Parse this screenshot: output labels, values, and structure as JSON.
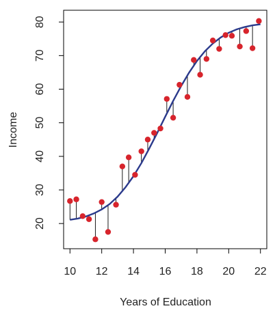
{
  "chart_data": {
    "type": "scatter",
    "title": "",
    "xlabel": "Years of Education",
    "ylabel": "Income",
    "xlim": [
      9.6,
      22.4
    ],
    "ylim": [
      12.5,
      83.5
    ],
    "xticks": [
      10,
      12,
      14,
      16,
      18,
      20,
      22
    ],
    "yticks": [
      20,
      30,
      40,
      50,
      60,
      70,
      80
    ],
    "grid": false,
    "legend": "none",
    "colors": {
      "points": "#d7242c",
      "curve": "#2b3a8c",
      "residuals": "#000000",
      "axis": "#000000"
    },
    "points": {
      "x": [
        10.0,
        10.4,
        10.8,
        11.2,
        11.6,
        12.0,
        12.4,
        12.9,
        13.3,
        13.7,
        14.1,
        14.5,
        14.9,
        15.3,
        15.7,
        16.1,
        16.5,
        16.9,
        17.4,
        17.8,
        18.2,
        18.6,
        19.0,
        19.4,
        19.8,
        20.2,
        20.7,
        21.1,
        21.5,
        21.9
      ],
      "y": [
        26.7,
        27.2,
        22.2,
        21.3,
        15.3,
        26.4,
        17.5,
        25.6,
        37.0,
        39.7,
        34.5,
        41.5,
        45.0,
        47.0,
        48.3,
        57.1,
        51.5,
        61.3,
        57.7,
        68.7,
        64.3,
        69.0,
        74.5,
        72.0,
        76.1,
        75.9,
        72.7,
        77.3,
        72.2,
        80.3
      ]
    },
    "fit_curve": {
      "x": [
        10,
        10.5,
        11,
        11.5,
        12,
        12.5,
        13,
        13.5,
        14,
        14.5,
        15,
        15.5,
        16,
        16.5,
        17,
        17.5,
        18,
        18.5,
        19,
        19.5,
        20,
        20.5,
        21,
        21.5,
        22
      ],
      "y": [
        21.1,
        21.5,
        22.1,
        23.0,
        24.2,
        25.8,
        28.0,
        30.8,
        34.1,
        38.0,
        42.4,
        47.0,
        51.8,
        56.5,
        60.9,
        64.9,
        68.4,
        71.3,
        73.6,
        75.4,
        76.8,
        77.8,
        78.5,
        79.0,
        79.3
      ]
    }
  }
}
